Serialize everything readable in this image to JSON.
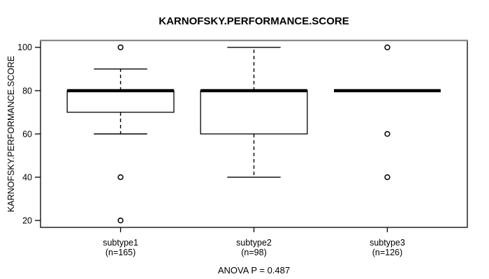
{
  "chart_data": {
    "type": "boxplot",
    "title": "KARNOFSKY.PERFORMANCE.SCORE",
    "ylabel": "KARNOFSKY.PERFORMANCE.SCORE",
    "footer": "ANOVA P = 0.487",
    "ylim": [
      16.8,
      103.2
    ],
    "xlim": [
      0.4,
      3.6
    ],
    "y_ticks": [
      20,
      40,
      60,
      80,
      100
    ],
    "grid": false,
    "colors": {
      "stroke": "#000000",
      "background": "#ffffff",
      "border_top": "#8a8a8a"
    },
    "groups": [
      {
        "label": "subtype1",
        "sublabel": "(n=165)",
        "n": 165,
        "q1": 70,
        "median": 80,
        "q3": 80,
        "whisker_low": 60,
        "whisker_high": 90,
        "outliers": [
          100,
          40,
          20
        ]
      },
      {
        "label": "subtype2",
        "sublabel": "(n=98)",
        "n": 98,
        "q1": 60,
        "median": 80,
        "q3": 80,
        "whisker_low": 40,
        "whisker_high": 100,
        "outliers": []
      },
      {
        "label": "subtype3",
        "sublabel": "(n=126)",
        "n": 126,
        "q1": 80,
        "median": 80,
        "q3": 80,
        "whisker_low": 80,
        "whisker_high": 80,
        "outliers": [
          100,
          60,
          40
        ]
      }
    ]
  }
}
